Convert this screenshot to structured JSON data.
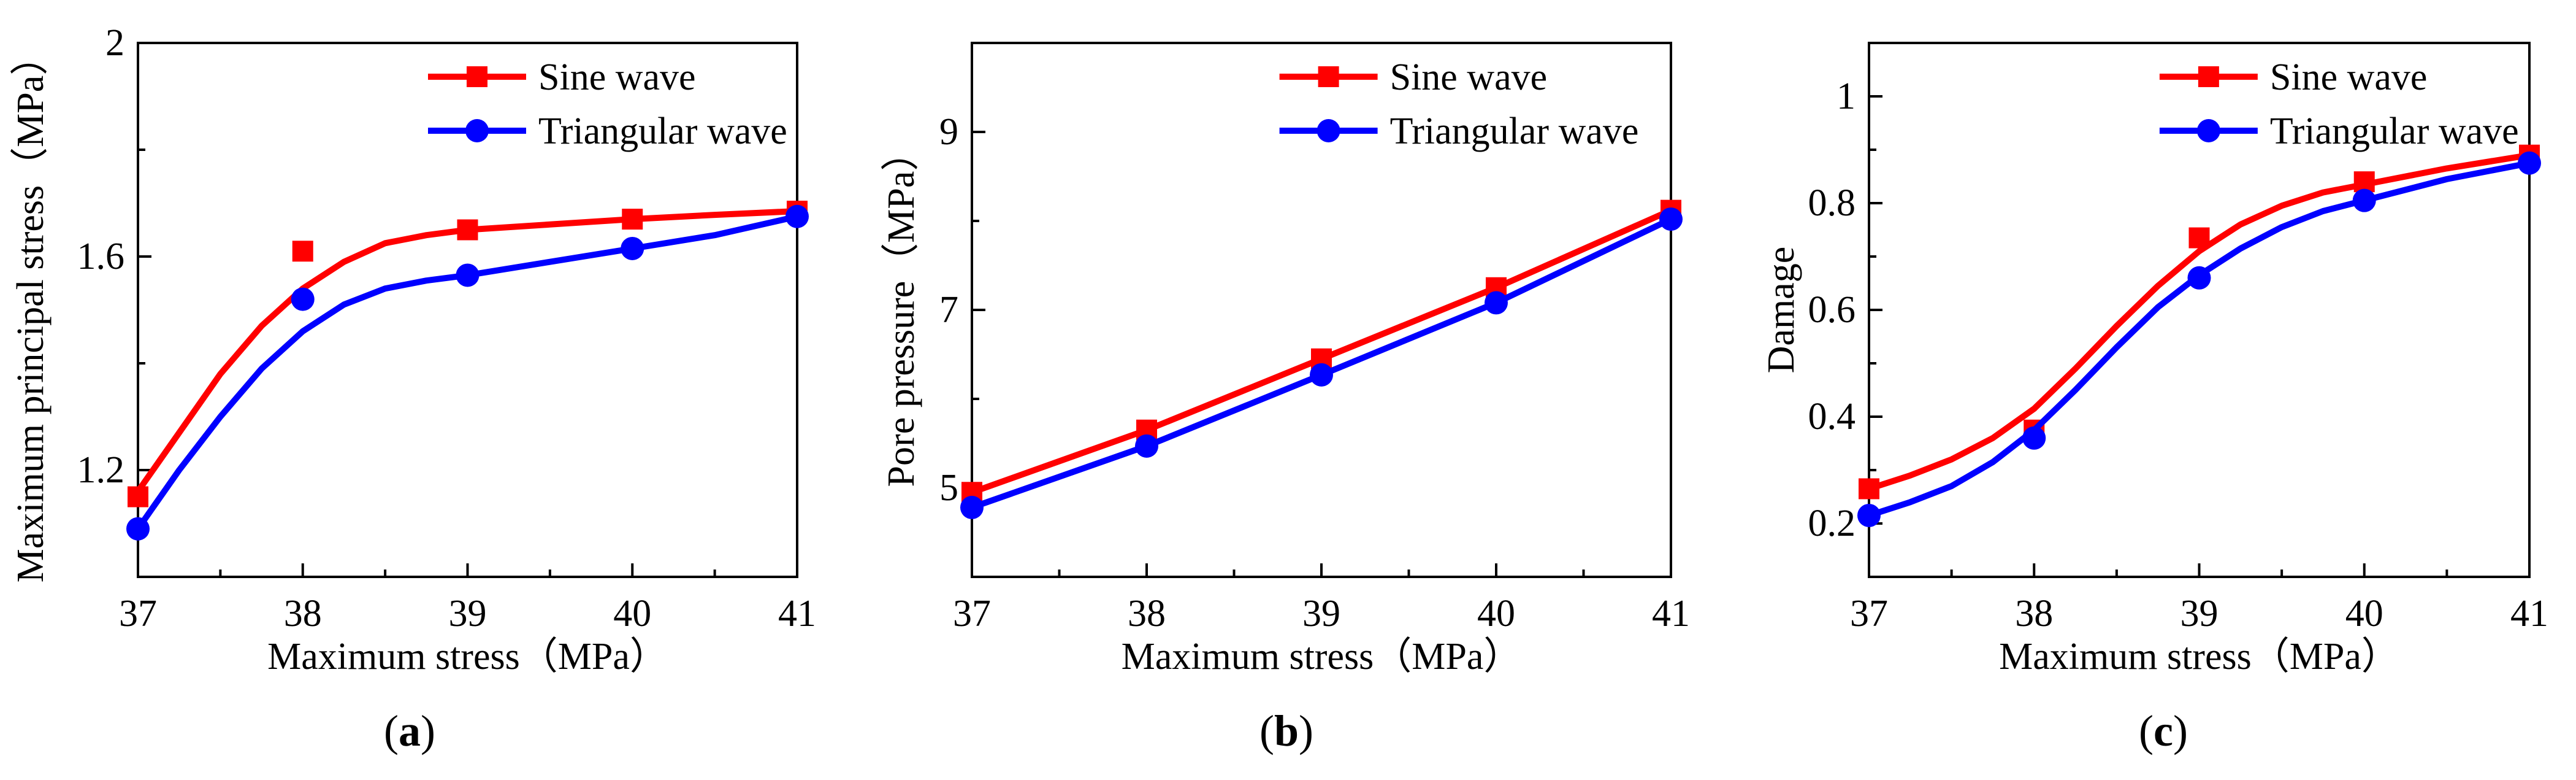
{
  "figure": {
    "label_open": "(",
    "label_close": ")"
  },
  "chart_data": [
    {
      "type": "line",
      "panel_label": "a",
      "title": "",
      "xlabel": "Maximum  stress（MPa）",
      "ylabel": "Maximum principal stress（MPa）",
      "xlim": [
        37,
        41
      ],
      "ylim": [
        1.0,
        2.0
      ],
      "xticks": [
        37,
        38,
        39,
        40,
        41
      ],
      "xtick_labels": [
        "37",
        "38",
        "39",
        "40",
        "41"
      ],
      "yticks": [
        1.2,
        1.6,
        2.0
      ],
      "ytick_labels": [
        "1.2",
        "1.6",
        "2"
      ],
      "legend_position": "top-right",
      "series": [
        {
          "name": "Sine wave",
          "color": "#ff0000",
          "marker": "square",
          "x": [
            37,
            38,
            39,
            40,
            41
          ],
          "y": [
            1.15,
            1.61,
            1.65,
            1.67,
            1.685
          ],
          "curve": [
            [
              37,
              1.16
            ],
            [
              37.25,
              1.27
            ],
            [
              37.5,
              1.38
            ],
            [
              37.75,
              1.47
            ],
            [
              38,
              1.54
            ],
            [
              38.25,
              1.59
            ],
            [
              38.5,
              1.625
            ],
            [
              38.75,
              1.64
            ],
            [
              39,
              1.65
            ],
            [
              39.5,
              1.66
            ],
            [
              40,
              1.67
            ],
            [
              40.5,
              1.678
            ],
            [
              41,
              1.685
            ]
          ]
        },
        {
          "name": "Triangular wave",
          "color": "#0000ff",
          "marker": "circle",
          "x": [
            37,
            38,
            39,
            40,
            41
          ],
          "y": [
            1.09,
            1.52,
            1.565,
            1.615,
            1.675
          ],
          "curve": [
            [
              37,
              1.09
            ],
            [
              37.25,
              1.2
            ],
            [
              37.5,
              1.3
            ],
            [
              37.75,
              1.39
            ],
            [
              38,
              1.46
            ],
            [
              38.25,
              1.51
            ],
            [
              38.5,
              1.54
            ],
            [
              38.75,
              1.555
            ],
            [
              39,
              1.565
            ],
            [
              39.5,
              1.59
            ],
            [
              40,
              1.615
            ],
            [
              40.5,
              1.64
            ],
            [
              41,
              1.675
            ]
          ]
        }
      ]
    },
    {
      "type": "line",
      "panel_label": "b",
      "title": "",
      "xlabel": "Maximum  stress（MPa）",
      "ylabel": "Pore pressure（MPa）",
      "xlim": [
        37,
        41
      ],
      "ylim": [
        4.0,
        10.0
      ],
      "xticks": [
        37,
        38,
        39,
        40,
        41
      ],
      "xtick_labels": [
        "37",
        "38",
        "39",
        "40",
        "41"
      ],
      "yticks": [
        5,
        7,
        9
      ],
      "ytick_labels": [
        "5",
        "7",
        "9"
      ],
      "legend_position": "top-right",
      "series": [
        {
          "name": "Sine wave",
          "color": "#ff0000",
          "marker": "square",
          "x": [
            37,
            38,
            39,
            40,
            41
          ],
          "y": [
            4.95,
            5.65,
            6.45,
            7.25,
            8.12
          ],
          "curve": [
            [
              37,
              4.95
            ],
            [
              38,
              5.65
            ],
            [
              39,
              6.45
            ],
            [
              40,
              7.25
            ],
            [
              41,
              8.12
            ]
          ]
        },
        {
          "name": "Triangular wave",
          "color": "#0000ff",
          "marker": "circle",
          "x": [
            37,
            38,
            39,
            40,
            41
          ],
          "y": [
            4.78,
            5.47,
            6.27,
            7.08,
            8.02
          ],
          "curve": [
            [
              37,
              4.78
            ],
            [
              38,
              5.47
            ],
            [
              39,
              6.27
            ],
            [
              40,
              7.08
            ],
            [
              41,
              8.02
            ]
          ]
        }
      ]
    },
    {
      "type": "line",
      "panel_label": "c",
      "title": "",
      "xlabel": "Maximum stress（MPa）",
      "ylabel": "Damage",
      "xlim": [
        37,
        41
      ],
      "ylim": [
        0.1,
        1.1
      ],
      "xticks": [
        37,
        38,
        39,
        40,
        41
      ],
      "xtick_labels": [
        "37",
        "38",
        "39",
        "40",
        "41"
      ],
      "yticks": [
        0.2,
        0.4,
        0.6,
        0.8,
        1.0
      ],
      "ytick_labels": [
        "0.2",
        "0.4",
        "0.6",
        "0.8",
        "1"
      ],
      "legend_position": "top-right",
      "series": [
        {
          "name": "Sine wave",
          "color": "#ff0000",
          "marker": "square",
          "x": [
            37,
            38,
            39,
            40,
            41
          ],
          "y": [
            0.265,
            0.375,
            0.735,
            0.84,
            0.89
          ],
          "curve": [
            [
              37,
              0.265
            ],
            [
              37.25,
              0.29
            ],
            [
              37.5,
              0.32
            ],
            [
              37.75,
              0.36
            ],
            [
              38,
              0.415
            ],
            [
              38.25,
              0.49
            ],
            [
              38.5,
              0.57
            ],
            [
              38.75,
              0.645
            ],
            [
              39,
              0.71
            ],
            [
              39.25,
              0.76
            ],
            [
              39.5,
              0.795
            ],
            [
              39.75,
              0.82
            ],
            [
              40,
              0.835
            ],
            [
              40.5,
              0.865
            ],
            [
              41,
              0.89
            ]
          ]
        },
        {
          "name": "Triangular wave",
          "color": "#0000ff",
          "marker": "circle",
          "x": [
            37,
            38,
            39,
            40,
            41
          ],
          "y": [
            0.215,
            0.36,
            0.66,
            0.805,
            0.875
          ],
          "curve": [
            [
              37,
              0.215
            ],
            [
              37.25,
              0.24
            ],
            [
              37.5,
              0.27
            ],
            [
              37.75,
              0.315
            ],
            [
              38,
              0.375
            ],
            [
              38.25,
              0.45
            ],
            [
              38.5,
              0.53
            ],
            [
              38.75,
              0.605
            ],
            [
              39,
              0.665
            ],
            [
              39.25,
              0.715
            ],
            [
              39.5,
              0.755
            ],
            [
              39.75,
              0.785
            ],
            [
              40,
              0.805
            ],
            [
              40.5,
              0.845
            ],
            [
              41,
              0.875
            ]
          ]
        }
      ]
    }
  ]
}
